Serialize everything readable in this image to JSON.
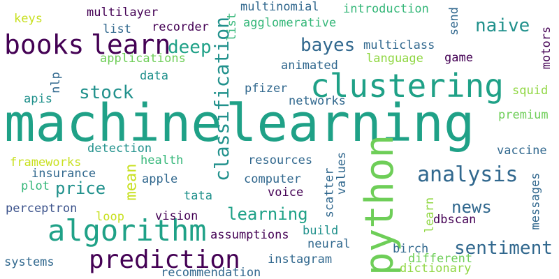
{
  "colors": {
    "background": "#ffffff",
    "dark_purple": "#440154",
    "indigo": "#3b528b",
    "blue_teal": "#31688e",
    "teal": "#21918c",
    "sea_green": "#1fa187",
    "green": "#35b779",
    "lime": "#6ece58",
    "light_lime": "#90d743",
    "yellow": "#c8e020"
  },
  "words": [
    {
      "text": "machine"
    },
    {
      "text": "learning"
    },
    {
      "text": "python"
    },
    {
      "text": "clustering"
    },
    {
      "text": "algorithm"
    },
    {
      "text": "books"
    },
    {
      "text": "learn"
    },
    {
      "text": "classification"
    },
    {
      "text": "prediction"
    },
    {
      "text": "analysis"
    },
    {
      "text": "sentiment"
    },
    {
      "text": "bayes"
    },
    {
      "text": "naive"
    },
    {
      "text": "stock"
    },
    {
      "text": "deep"
    },
    {
      "text": "learning"
    },
    {
      "text": "price"
    },
    {
      "text": "news"
    },
    {
      "text": "mean"
    },
    {
      "text": "keys"
    },
    {
      "text": "multilayer"
    },
    {
      "text": "list"
    },
    {
      "text": "recorder"
    },
    {
      "text": "multinomial"
    },
    {
      "text": "agglomerative"
    },
    {
      "text": "introduction"
    },
    {
      "text": "send"
    },
    {
      "text": "motors"
    },
    {
      "text": "multiclass"
    },
    {
      "text": "language"
    },
    {
      "text": "game"
    },
    {
      "text": "applications"
    },
    {
      "text": "animated"
    },
    {
      "text": "data"
    },
    {
      "text": "nlp"
    },
    {
      "text": "apis"
    },
    {
      "text": "pfizer"
    },
    {
      "text": "networks"
    },
    {
      "text": "squid"
    },
    {
      "text": "premium"
    },
    {
      "text": "detection"
    },
    {
      "text": "frameworks"
    },
    {
      "text": "health"
    },
    {
      "text": "insurance"
    },
    {
      "text": "resources"
    },
    {
      "text": "vaccine"
    },
    {
      "text": "values"
    },
    {
      "text": "apple"
    },
    {
      "text": "computer"
    },
    {
      "text": "plot"
    },
    {
      "text": "tata"
    },
    {
      "text": "voice"
    },
    {
      "text": "scatter"
    },
    {
      "text": "messages"
    },
    {
      "text": "perceptron"
    },
    {
      "text": "loop"
    },
    {
      "text": "vision"
    },
    {
      "text": "learn"
    },
    {
      "text": "dbscan"
    },
    {
      "text": "assumptions"
    },
    {
      "text": "build"
    },
    {
      "text": "neural"
    },
    {
      "text": "birch"
    },
    {
      "text": "systems"
    },
    {
      "text": "instagram"
    },
    {
      "text": "different"
    },
    {
      "text": "dictionary"
    },
    {
      "text": "recommendation"
    }
  ]
}
